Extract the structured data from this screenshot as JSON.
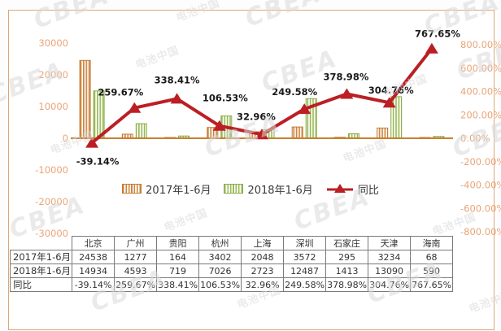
{
  "watermark": {
    "brand": "CBEA",
    "name": "电池中国"
  },
  "chart_data": {
    "type": "bar",
    "subtype": "bar-line-combo",
    "title": "",
    "categories": [
      "北京",
      "广州",
      "贵阳",
      "杭州",
      "上海",
      "深圳",
      "石家庄",
      "天津",
      "海南"
    ],
    "series": [
      {
        "name": "2017年1-6月",
        "type": "bar",
        "axis": "left",
        "values": [
          24538,
          1277,
          164,
          3402,
          2048,
          3572,
          295,
          3234,
          68
        ]
      },
      {
        "name": "2018年1-6月",
        "type": "bar",
        "axis": "left",
        "values": [
          14934,
          4593,
          719,
          7026,
          2723,
          12487,
          1413,
          13090,
          590
        ]
      },
      {
        "name": "同比",
        "type": "line",
        "axis": "right",
        "unit": "%",
        "values": [
          -39.14,
          259.67,
          338.41,
          106.53,
          32.96,
          249.58,
          378.98,
          304.76,
          767.65
        ]
      }
    ],
    "point_labels": [
      "-39.14%",
      "259.67%",
      "338.41%",
      "106.53%",
      "32.96%",
      "249.58%",
      "378.98%",
      "304.76%",
      "767.65%"
    ],
    "left_axis": {
      "min": -30000,
      "max": 30000,
      "step": 10000
    },
    "right_axis": {
      "min": -800,
      "max": 800,
      "step": 200,
      "suffix": "%",
      "decimals": 2
    },
    "legend": [
      "2017年1-6月",
      "2018年1-6月",
      "同比"
    ],
    "legend_position": "bottom",
    "grid": false,
    "colors": {
      "bar_2017": "#ce8540",
      "bar_2017_border": "#c07b33",
      "bar_2018": "#9bbb59",
      "bar_2018_border": "#8aa94c",
      "line": "#bb1f24",
      "axis_labels": "#e9a578",
      "axis_line": "#c8802f",
      "data_label": "#1a1a1a"
    }
  },
  "table": {
    "corner": "",
    "columns": [
      "北京",
      "广州",
      "贵阳",
      "杭州",
      "上海",
      "深圳",
      "石家庄",
      "天津",
      "海南"
    ],
    "rows": [
      {
        "label": "2017年1-6月",
        "values": [
          "24538",
          "1277",
          "164",
          "3402",
          "2048",
          "3572",
          "295",
          "3234",
          "68"
        ]
      },
      {
        "label": "2018年1-6月",
        "values": [
          "14934",
          "4593",
          "719",
          "7026",
          "2723",
          "12487",
          "1413",
          "13090",
          "590"
        ]
      },
      {
        "label": "同比",
        "values": [
          "-39.14%",
          "259.67%",
          "338.41%",
          "106.53%",
          "32.96%",
          "249.58%",
          "378.98%",
          "304.76%",
          "767.65%"
        ]
      }
    ]
  }
}
